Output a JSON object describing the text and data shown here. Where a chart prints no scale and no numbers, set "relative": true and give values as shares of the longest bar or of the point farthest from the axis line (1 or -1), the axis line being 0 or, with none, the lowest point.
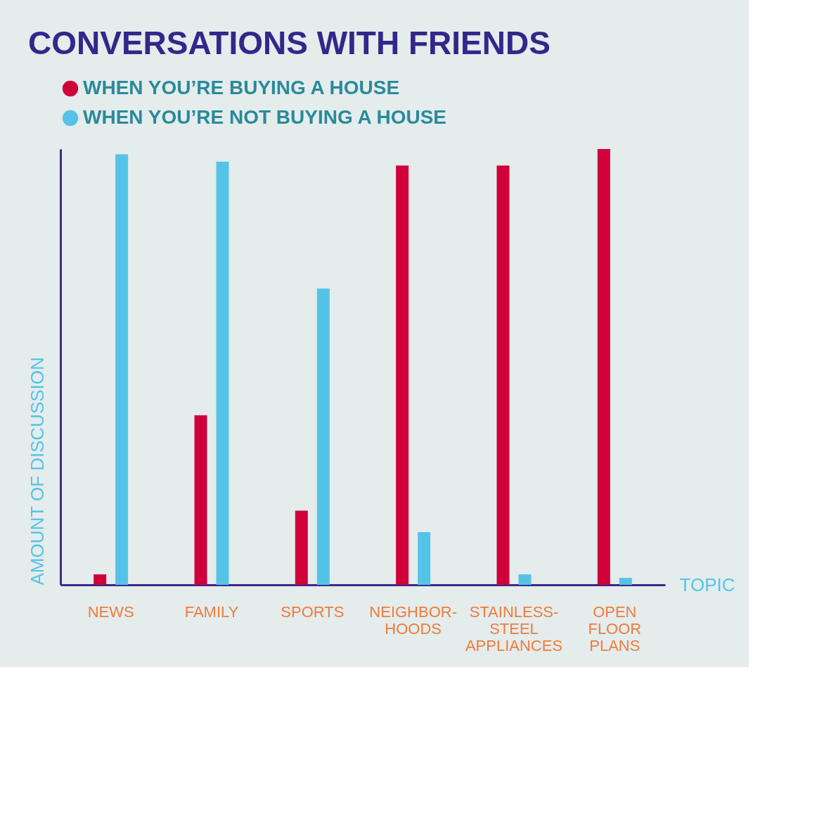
{
  "chart_data": {
    "type": "bar",
    "title": "CONVERSATIONS WITH FRIENDS",
    "xlabel": "TOPIC",
    "ylabel": "AMOUNT OF DISCUSSION",
    "categories": [
      "NEWS",
      "FAMILY",
      "SPORTS",
      "NEIGHBOR-HOODS",
      "STAINLESS-STEEL APPLIANCES",
      "OPEN FLOOR PLANS"
    ],
    "relative": true,
    "legend": "top left",
    "grid": false,
    "series": [
      {
        "name": "WHEN YOU’RE BUYING A HOUSE",
        "color": "#d0003a",
        "values": [
          0.024,
          0.389,
          0.17,
          0.962,
          0.962,
          1
        ]
      },
      {
        "name": "WHEN YOU’RE NOT BUYING A HOUSE",
        "color": "#55c3e8",
        "values": [
          0.988,
          0.971,
          0.68,
          0.121,
          0.024,
          0.016
        ]
      }
    ]
  }
}
